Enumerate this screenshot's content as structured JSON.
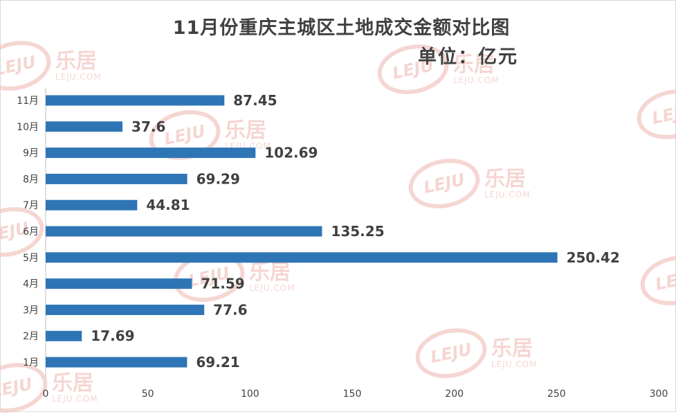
{
  "chart_data": {
    "type": "bar",
    "orientation": "horizontal",
    "title": "11月份重庆主城区土地成交金额对比图",
    "subtitle": "单位：亿元",
    "categories": [
      "11月",
      "10月",
      "9月",
      "8月",
      "7月",
      "6月",
      "5月",
      "4月",
      "3月",
      "2月",
      "1月"
    ],
    "values": [
      87.45,
      37.6,
      102.69,
      69.29,
      44.81,
      135.25,
      250.42,
      71.59,
      77.6,
      17.69,
      69.21
    ],
    "value_labels": [
      "87.45",
      "37.6",
      "102.69",
      "69.29",
      "44.81",
      "135.25",
      "250.42",
      "71.59",
      "77.6",
      "17.69",
      "69.21"
    ],
    "x_ticks": [
      "0",
      "50",
      "100",
      "150",
      "200",
      "250",
      "300"
    ],
    "xlim": [
      0,
      300
    ],
    "bar_color": "#2e75b6",
    "grid": false,
    "legend": "none"
  },
  "watermark": {
    "logo_text": "LEJU",
    "brand_text": "乐居",
    "domain_text": "LEJU.COM",
    "color": "#f2c9c3"
  }
}
